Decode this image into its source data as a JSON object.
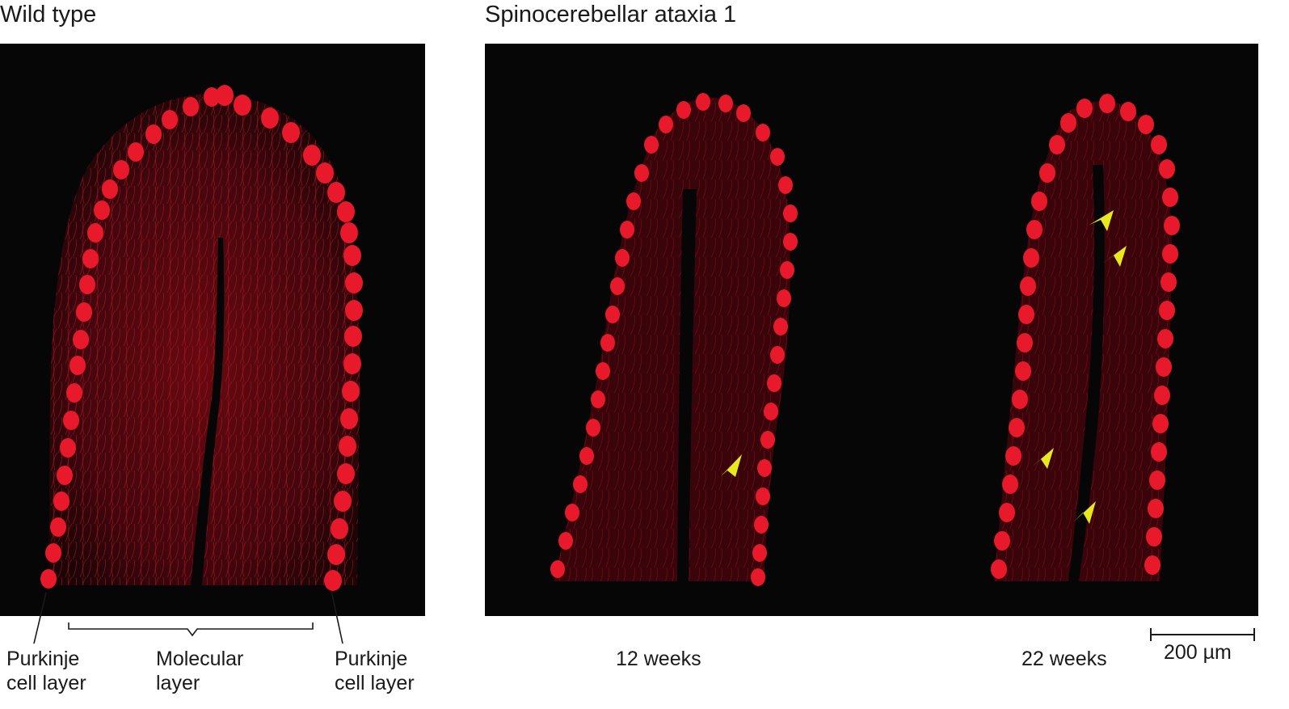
{
  "left_panel": {
    "title": "Wild type",
    "labels": {
      "purkinje_left": [
        "Purkinje",
        "cell layer"
      ],
      "molecular": [
        "Molecular",
        "layer"
      ],
      "purkinje_right": [
        "Purkinje",
        "cell layer"
      ]
    }
  },
  "right_panel": {
    "title": "Spinocerebellar ataxia 1",
    "labels": {
      "week_a": "12 weeks",
      "week_b": "22 weeks"
    },
    "scale_bar": "200 µm"
  },
  "colors": {
    "background": "#060606",
    "stain": "#e8192a",
    "arrowhead": "#e8e81e",
    "text": "#1a1a1a"
  }
}
